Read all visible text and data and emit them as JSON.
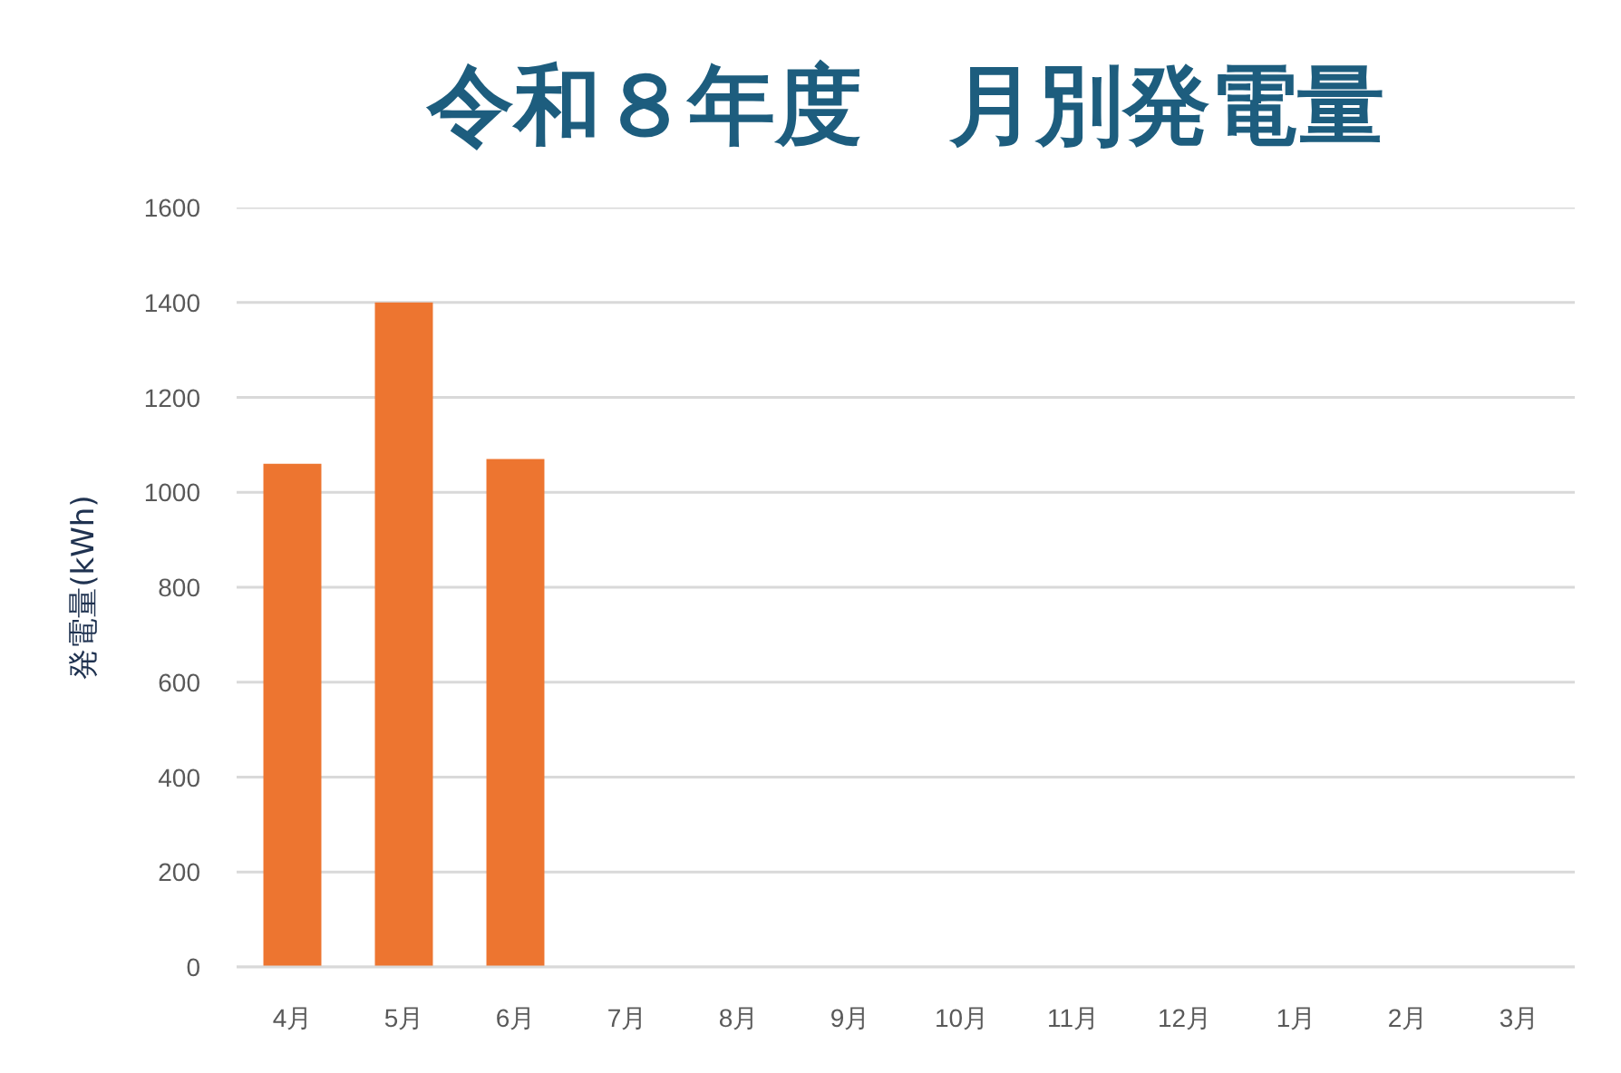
{
  "chart_data": {
    "type": "bar",
    "title": "令和８年度　月別発電量",
    "ylabel": "発電量(kWh)",
    "categories": [
      "4月",
      "5月",
      "6月",
      "7月",
      "8月",
      "9月",
      "10月",
      "11月",
      "12月",
      "1月",
      "2月",
      "3月"
    ],
    "values": [
      1060,
      1400,
      1070,
      null,
      null,
      null,
      null,
      null,
      null,
      null,
      null,
      null
    ],
    "color": "#ed7530",
    "ylim": [
      0,
      1600
    ],
    "yticks": [
      0,
      200,
      400,
      600,
      800,
      1000,
      1200,
      1400,
      1600
    ],
    "grid": "y"
  }
}
